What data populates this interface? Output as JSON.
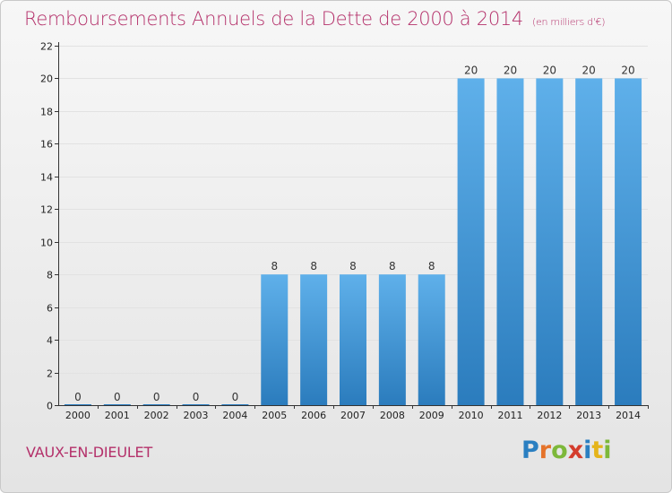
{
  "title": "Remboursements Annuels de la Dette de 2000 à 2014",
  "unit_note": "(en milliers d'€)",
  "commune": "VAUX-EN-DIEULET",
  "logo": {
    "letters": [
      "P",
      "r",
      "o",
      "x",
      "i",
      "t",
      "i"
    ],
    "colors": [
      "#2a7fc1",
      "#e5732a",
      "#7db83a",
      "#d43c2c",
      "#2a7fc1",
      "#e5b41a",
      "#7db83a"
    ]
  },
  "colors": {
    "bar_light": "#5fb0ea",
    "bar_dark": "#2b7cbd",
    "accent": "#b4306a"
  },
  "chart_data": {
    "type": "bar",
    "title": "Remboursements Annuels de la Dette de 2000 à 2014",
    "ylabel": "en milliers d'€",
    "xlabel": "",
    "categories": [
      "2000",
      "2001",
      "2002",
      "2003",
      "2004",
      "2005",
      "2006",
      "2007",
      "2008",
      "2009",
      "2010",
      "2011",
      "2012",
      "2013",
      "2014"
    ],
    "values": [
      0,
      0,
      0,
      0,
      0,
      8,
      8,
      8,
      8,
      8,
      20,
      20,
      20,
      20,
      20
    ],
    "ylim": [
      0,
      22
    ],
    "yticks": [
      0,
      2,
      4,
      6,
      8,
      10,
      12,
      14,
      16,
      18,
      20,
      22
    ],
    "grid": true
  }
}
